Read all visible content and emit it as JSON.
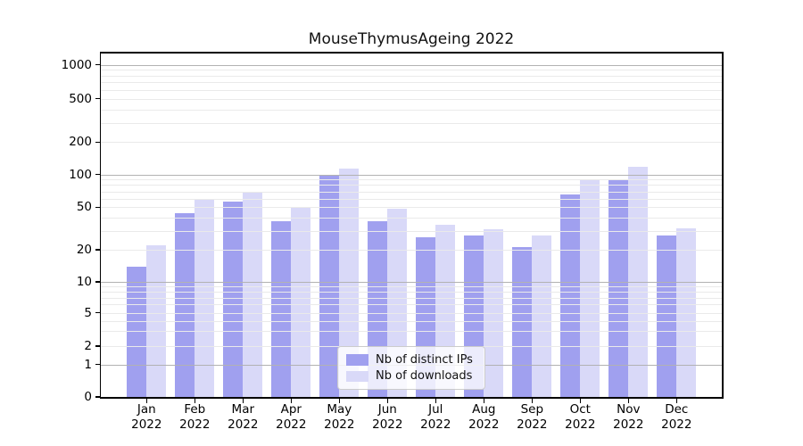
{
  "chart_data": {
    "type": "bar",
    "title": "MouseThymusAgeing 2022",
    "categories": [
      "Jan",
      "Feb",
      "Mar",
      "Apr",
      "May",
      "Jun",
      "Jul",
      "Aug",
      "Sep",
      "Oct",
      "Nov",
      "Dec"
    ],
    "year_label": "2022",
    "series": [
      {
        "name": "Nb of distinct IPs",
        "color": "#a0a0ef",
        "values": [
          14,
          44,
          56,
          37,
          98,
          37,
          26,
          27,
          21,
          65,
          90,
          27
        ]
      },
      {
        "name": "Nb of downloads",
        "color": "#d9d9f8",
        "values": [
          22,
          59,
          69,
          49,
          114,
          48,
          34,
          31,
          27,
          88,
          117,
          32
        ]
      }
    ],
    "xlabel": "",
    "ylabel": "",
    "yticks": [
      0,
      1,
      2,
      5,
      10,
      20,
      50,
      100,
      200,
      500,
      1000
    ],
    "ylim": [
      0,
      1000
    ],
    "yscale": "symlog-like (logarithmic above ~5, compressed toward 0)",
    "grid": "horizontal only; major lines at 1, 10, 100, 1000; faint minor log lines",
    "legend_position": "inside plot, lower center"
  }
}
